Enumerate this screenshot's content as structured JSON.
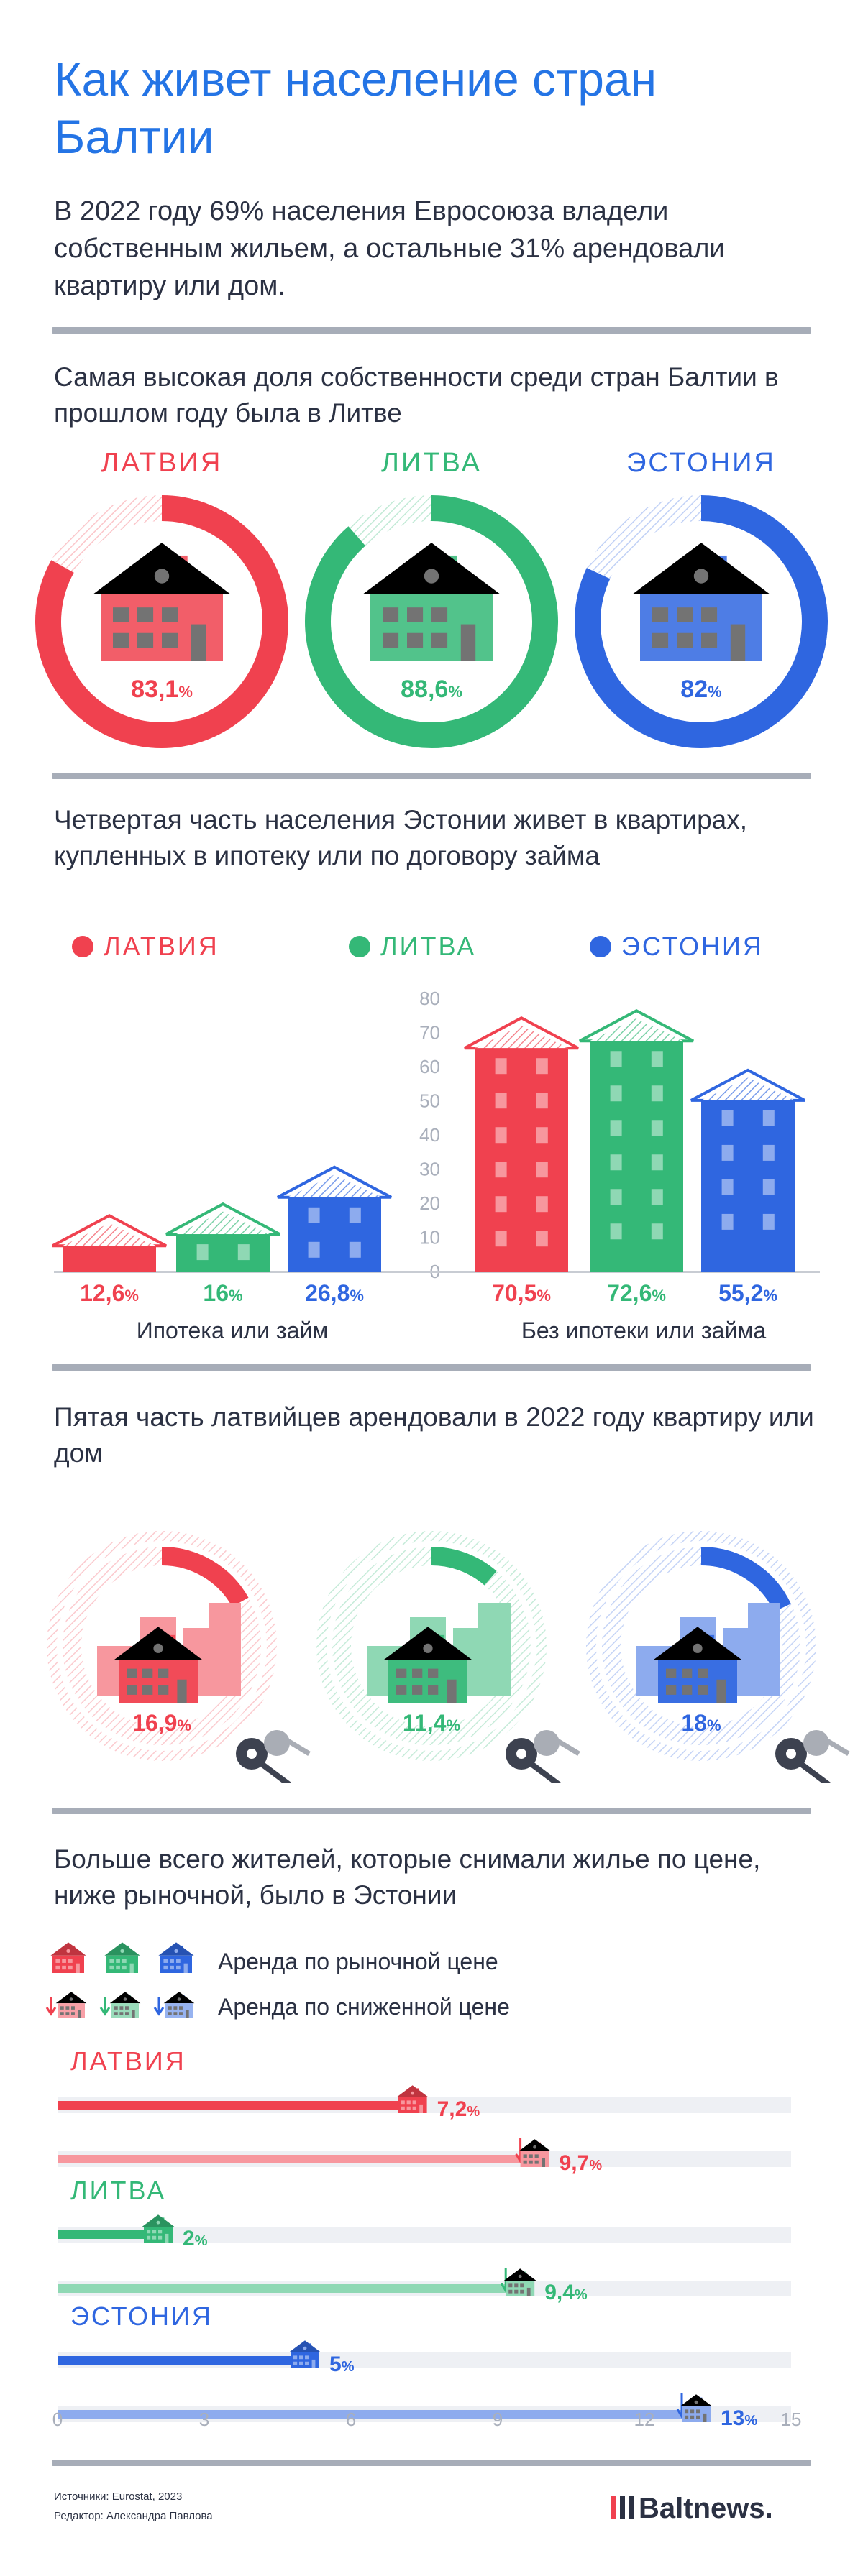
{
  "header": {
    "title": "Как живет население стран Балтии",
    "lead": "В 2022 году 69% населения Евросоюза владели собственным жильем, а остальные 31% арендовали квартиру или дом."
  },
  "colors": {
    "latvia": "#f0414f",
    "lithuania": "#34b877",
    "estonia": "#2f66e0",
    "title": "#2474e5",
    "text": "#2b3143",
    "divider": "#a7adb8"
  },
  "section1": {
    "heading": "Самая высокая доля собственности среди стран Балтии в прошлом году была в Литве",
    "items": [
      {
        "country": "ЛАТВИЯ",
        "value": 83.1,
        "label": "83,1",
        "unit": "%",
        "color": "#f0414f"
      },
      {
        "country": "ЛИТВА",
        "value": 88.6,
        "label": "88,6",
        "unit": "%",
        "color": "#34b877"
      },
      {
        "country": "ЭСТОНИЯ",
        "value": 82,
        "label": "82",
        "unit": "%",
        "color": "#2f66e0"
      }
    ]
  },
  "section2": {
    "heading": "Четвертая часть населения Эстонии живет в квартирах, купленных в ипотеку или по договору займа",
    "legend": [
      {
        "label": "ЛАТВИЯ",
        "color": "#f0414f"
      },
      {
        "label": "ЛИТВА",
        "color": "#34b877"
      },
      {
        "label": "ЭСТОНИЯ",
        "color": "#2f66e0"
      }
    ],
    "yticks": [
      "0",
      "10",
      "20",
      "30",
      "40",
      "50",
      "60",
      "70",
      "80"
    ],
    "group1_label": "Ипотека или займ",
    "group2_label": "Без ипотеки или займа"
  },
  "chart_data": [
    {
      "type": "bar",
      "title": "Четвертая часть населения Эстонии живет в квартирах, купленных в ипотеку или по договору займа",
      "categories": [
        "Ипотека или займ",
        "Без ипотеки или займа"
      ],
      "series": [
        {
          "name": "ЛАТВИЯ",
          "values": [
            12.6,
            70.5
          ],
          "labels": [
            "12,6",
            "70,5"
          ],
          "unit": "%",
          "color": "#f0414f"
        },
        {
          "name": "ЛИТВА",
          "values": [
            16,
            72.6
          ],
          "labels": [
            "16",
            "72,6"
          ],
          "unit": "%",
          "color": "#34b877"
        },
        {
          "name": "ЭСТОНИЯ",
          "values": [
            26.8,
            55.2
          ],
          "labels": [
            "26,8",
            "55,2"
          ],
          "unit": "%",
          "color": "#2f66e0"
        }
      ],
      "ylim": [
        0,
        80
      ],
      "legend": "top"
    },
    {
      "type": "bar",
      "title": "Больше всего жителей, которые снимали жилье по цене, ниже рыночной, было в Эстонии",
      "categories": [
        "ЛАТВИЯ",
        "ЛИТВА",
        "ЭСТОНИЯ"
      ],
      "series": [
        {
          "name": "Аренда по рыночной цене",
          "values": [
            7.2,
            2,
            5
          ],
          "labels": [
            "7,2",
            "2",
            "5"
          ],
          "unit": "%"
        },
        {
          "name": "Аренда по сниженной цене",
          "values": [
            9.7,
            9.4,
            13
          ],
          "labels": [
            "9,7",
            "9,4",
            "13"
          ],
          "unit": "%"
        }
      ],
      "xticks": [
        "0",
        "3",
        "6",
        "9",
        "12",
        "15"
      ],
      "xlim": [
        0,
        15
      ],
      "legend": "top-left"
    }
  ],
  "section3": {
    "heading": "Пятая часть латвийцев арендовали в 2022 году квартиру или дом",
    "items": [
      {
        "value": 16.9,
        "label": "16,9",
        "unit": "%",
        "color": "#f0414f"
      },
      {
        "value": 11.4,
        "label": "11,4",
        "unit": "%",
        "color": "#34b877"
      },
      {
        "value": 18,
        "label": "18",
        "unit": "%",
        "color": "#2f66e0"
      }
    ]
  },
  "section4": {
    "heading": "Больше всего жителей, которые снимали жилье по цене, ниже рыночной, было в Эстонии",
    "legend_market": "Аренда по рыночной цене",
    "legend_reduced": "Аренда по сниженной цене"
  },
  "footer": {
    "sources": "Источники: Eurostat, 2023",
    "editor": "Редактор: Александра Павлова",
    "brand": "Baltnews."
  }
}
